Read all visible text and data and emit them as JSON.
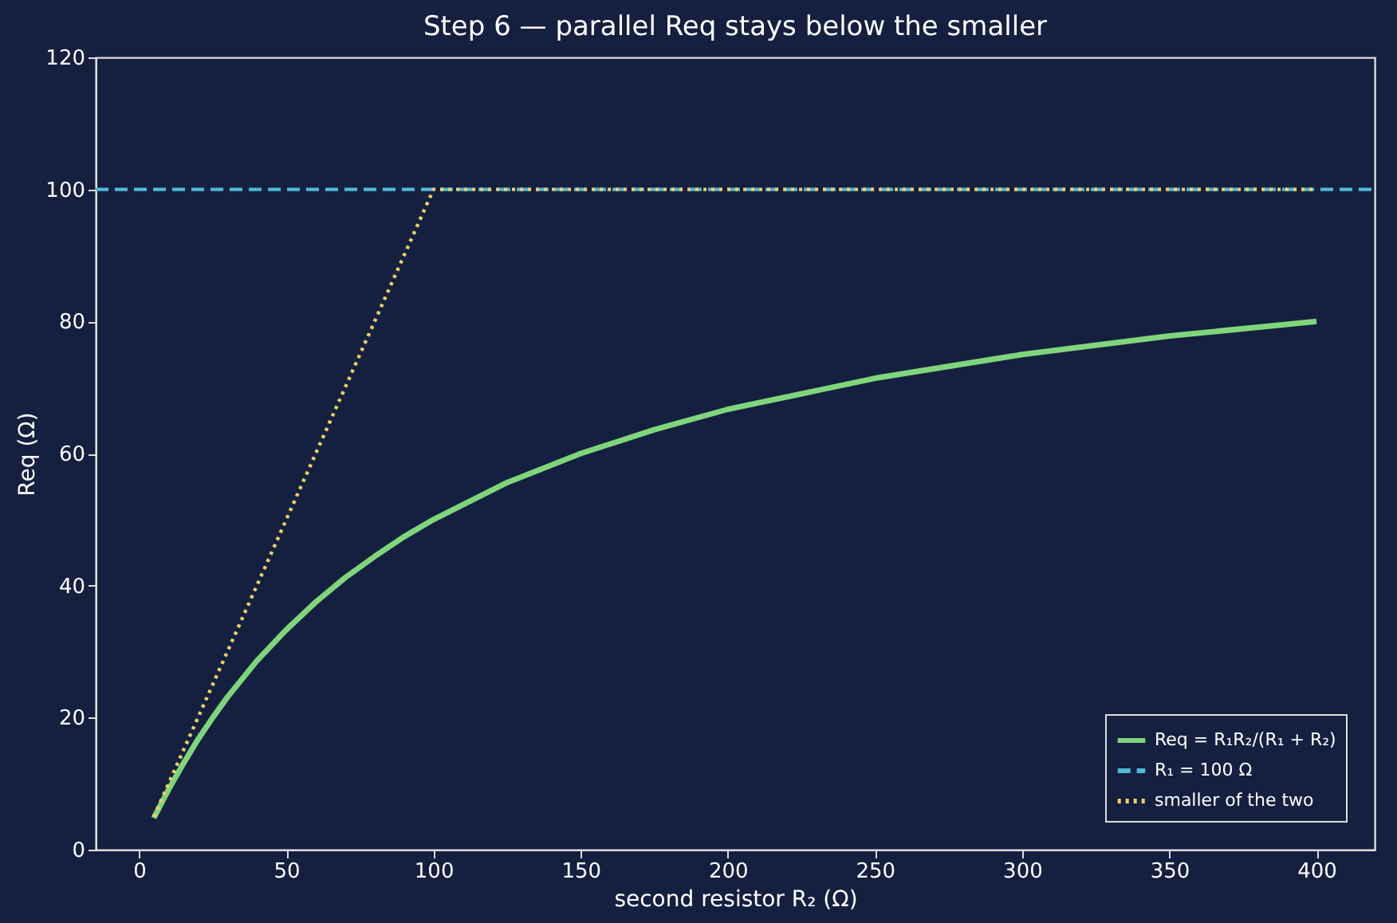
{
  "chart_data": {
    "type": "line",
    "title": "Step 6 — parallel Req stays below the smaller",
    "xlabel": "second resistor R₂ (Ω)",
    "ylabel": "Req (Ω)",
    "xlim": [
      -14.75,
      419.75
    ],
    "xticks": [
      0,
      50,
      100,
      150,
      200,
      250,
      300,
      350,
      400
    ],
    "ylim": [
      0,
      120
    ],
    "yticks": [
      0,
      20,
      40,
      60,
      80,
      100,
      120
    ],
    "grid": false,
    "legend": "bottom right",
    "marker": "none",
    "series": [
      {
        "name": "Req = R₁R₂/(R₁ + R₂)",
        "color": "#7fd67a",
        "line_style": "solid",
        "x": [
          5,
          10,
          15,
          20,
          25,
          30,
          40,
          50,
          60,
          70,
          80,
          90,
          100,
          125,
          150,
          175,
          200,
          250,
          300,
          350,
          400
        ],
        "values": [
          4.8,
          9.1,
          13.0,
          16.7,
          20.0,
          23.1,
          28.6,
          33.3,
          37.5,
          41.2,
          44.4,
          47.4,
          50.0,
          55.6,
          60.0,
          63.6,
          66.7,
          71.4,
          75.0,
          77.8,
          80.0
        ]
      },
      {
        "name": "R₁ = 100 Ω",
        "color": "#4fb8d8",
        "line_style": "dashed",
        "x": [
          -14.75,
          419.75
        ],
        "values": [
          100,
          100
        ]
      },
      {
        "name": "smaller of the two",
        "color": "#f0d060",
        "line_style": "dotted",
        "x": [
          5,
          100,
          400
        ],
        "values": [
          5,
          100,
          100
        ]
      }
    ]
  }
}
